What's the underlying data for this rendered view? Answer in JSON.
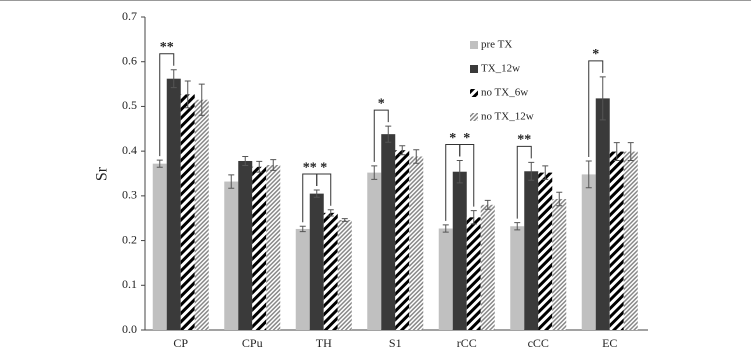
{
  "chart_data": {
    "type": "bar",
    "ylabel": "Sr",
    "categories": [
      "CP",
      "CPu",
      "TH",
      "S1",
      "rCC",
      "cCC",
      "EC"
    ],
    "series": [
      {
        "name": "pre TX",
        "color": "#c0c0c0",
        "values": [
          0.372,
          0.332,
          0.226,
          0.352,
          0.227,
          0.232,
          0.348
        ],
        "errors": [
          0.008,
          0.015,
          0.006,
          0.015,
          0.008,
          0.008,
          0.03
        ]
      },
      {
        "name": "TX_12w",
        "color": "#3a3a3a",
        "values": [
          0.562,
          0.378,
          0.305,
          0.438,
          0.354,
          0.355,
          0.518
        ],
        "errors": [
          0.02,
          0.01,
          0.008,
          0.018,
          0.025,
          0.02,
          0.048
        ]
      },
      {
        "name": "no TX_6w",
        "color": "#000000",
        "pattern": "stripes",
        "values": [
          0.527,
          0.365,
          0.262,
          0.402,
          0.252,
          0.352,
          0.399
        ],
        "errors": [
          0.03,
          0.012,
          0.007,
          0.01,
          0.015,
          0.015,
          0.02
        ]
      },
      {
        "name": "no TX_12w",
        "color": "#888888",
        "pattern": "hatch",
        "values": [
          0.515,
          0.369,
          0.246,
          0.388,
          0.28,
          0.293,
          0.399
        ],
        "errors": [
          0.035,
          0.012,
          0.003,
          0.015,
          0.01,
          0.015,
          0.02
        ]
      }
    ],
    "ylim": [
      0,
      0.7
    ],
    "yticks": [
      {
        "value": 0,
        "label": "0.0"
      },
      0.1,
      0.2,
      0.3,
      0.4,
      0.5,
      0.6,
      0.7
    ],
    "grid": false,
    "legend": "upper right",
    "annotations": [
      "**",
      "**",
      "*",
      "*",
      "*",
      "*",
      "**",
      "*"
    ]
  }
}
